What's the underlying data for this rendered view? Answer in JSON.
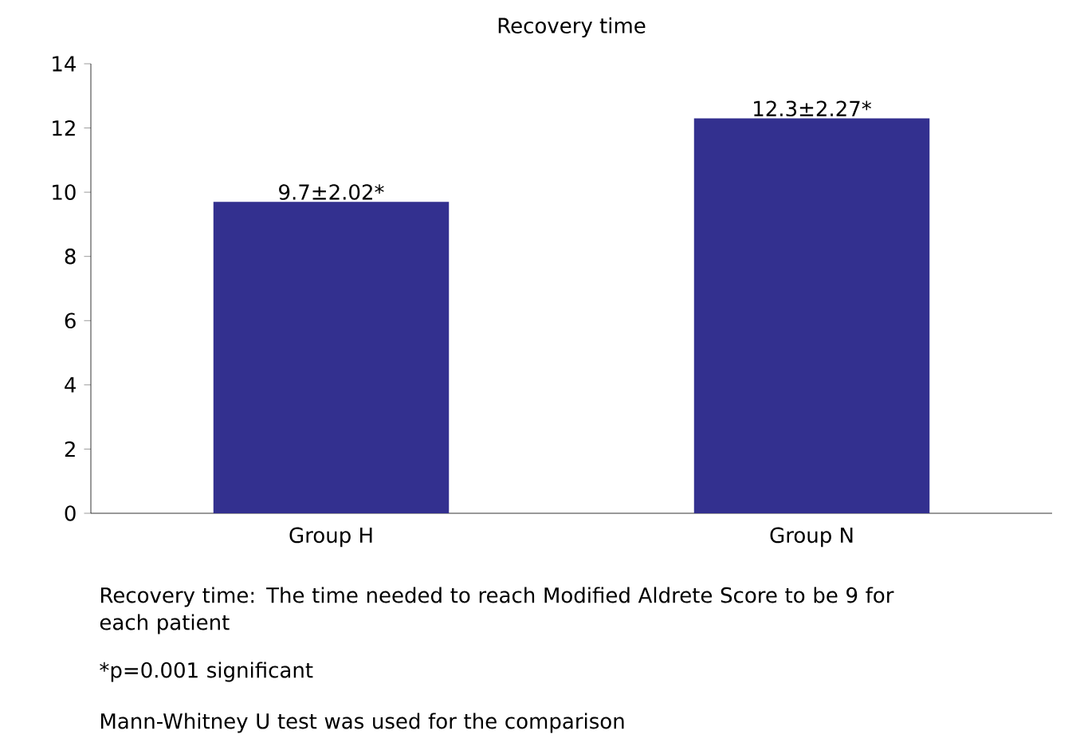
{
  "chart_data": {
    "type": "bar",
    "title": "Recovery time",
    "categories": [
      "Group H",
      "Group N"
    ],
    "values": [
      9.7,
      12.3
    ],
    "value_labels": [
      "9.7±2.02*",
      "12.3±2.27*"
    ],
    "color": "#33308f",
    "ylim": [
      0,
      14
    ],
    "yticks": [
      0,
      2,
      4,
      6,
      8,
      10,
      12,
      14
    ],
    "grid": false,
    "annotations": [
      "Recovery time: The time needed to reach Modified Aldrete Score to be 9 for each patient",
      "*p=0.001 significant",
      "Mann-Whitney U test was used for the comparison"
    ]
  }
}
